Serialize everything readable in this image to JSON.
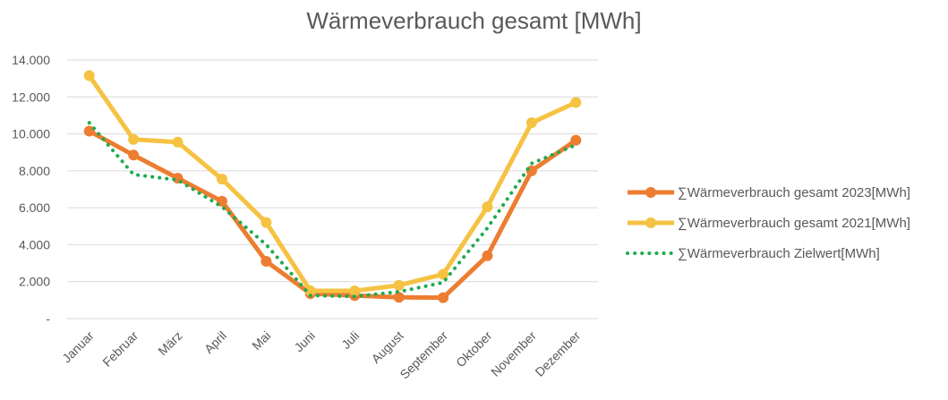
{
  "chart_data": {
    "type": "line",
    "title": "Wärmeverbrauch gesamt [MWh]",
    "categories": [
      "Januar",
      "Februar",
      "März",
      "April",
      "Mai",
      "Juni",
      "Juli",
      "August",
      "September",
      "Oktober",
      "November",
      "Dezember"
    ],
    "y_tick_labels": [
      "-",
      "2.000",
      "4.000",
      "6.000",
      "8.000",
      "10.000",
      "12.000",
      "14.000"
    ],
    "ylim": [
      0,
      14000
    ],
    "grid": true,
    "legend_position": "right",
    "series": [
      {
        "name": "∑Wärmeverbrauch gesamt 2023[MWh]",
        "color": "#ED7D31",
        "style": "solid-markers",
        "values": [
          10150,
          8850,
          7600,
          6350,
          3100,
          1350,
          1250,
          1150,
          1130,
          3400,
          8000,
          9650
        ]
      },
      {
        "name": "∑Wärmeverbrauch gesamt 2021[MWh]",
        "color": "#F5C242",
        "style": "solid-markers",
        "values": [
          13150,
          9700,
          9550,
          7550,
          5200,
          1500,
          1500,
          1800,
          2400,
          6050,
          10600,
          11700
        ]
      },
      {
        "name": "∑Wärmeverbrauch Zielwert[MWh]",
        "color": "#1EAB4F",
        "style": "dotted",
        "values": [
          10600,
          7800,
          7500,
          6050,
          4000,
          1250,
          1200,
          1450,
          1950,
          4900,
          8400,
          9400
        ]
      }
    ]
  }
}
